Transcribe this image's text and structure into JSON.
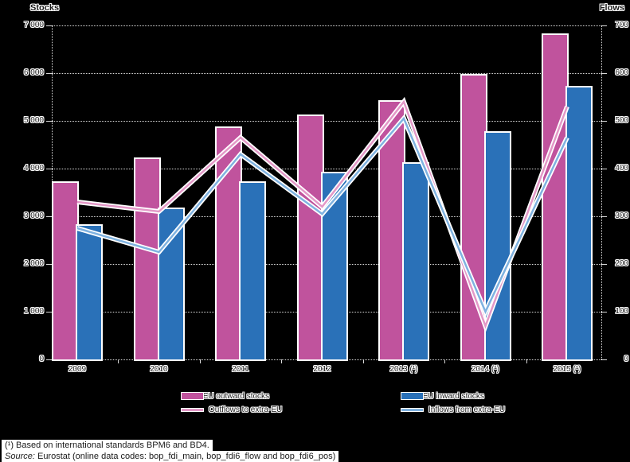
{
  "chart_data": {
    "type": "bar",
    "subtype": "dual-axis bar and line combo",
    "categories": [
      "2009",
      "2010",
      "2011",
      "2012",
      "2013 (¹)",
      "2014 (¹)",
      "2015 (¹)"
    ],
    "bar_series": [
      {
        "name": "Extra-EU outward stocks",
        "axis": "left",
        "color": "#c0539d",
        "values": [
          3700,
          4200,
          4850,
          5100,
          5400,
          5950,
          6800
        ]
      },
      {
        "name": "Extra-EU inward stocks",
        "axis": "left",
        "color": "#2a71b8",
        "values": [
          2800,
          3150,
          3700,
          3900,
          4100,
          4750,
          5700
        ]
      }
    ],
    "line_series": [
      {
        "name": "Outflows to extra-EU",
        "axis": "right",
        "color": "#e398c7",
        "values": [
          330,
          310,
          465,
          320,
          540,
          70,
          530
        ]
      },
      {
        "name": "Inflows from extra-EU",
        "axis": "right",
        "color": "#7fb2e0",
        "values": [
          275,
          225,
          430,
          305,
          505,
          100,
          465
        ]
      }
    ],
    "left_axis": {
      "title": "Stocks",
      "min": 0,
      "max": 7000,
      "tick_step": 1000,
      "tick_labels": [
        "0",
        "1 000",
        "2 000",
        "3 000",
        "4 000",
        "5 000",
        "6 000",
        "7 000"
      ]
    },
    "right_axis": {
      "title": "Flows",
      "min": 0,
      "max": 700,
      "tick_step": 100,
      "tick_labels": [
        "0",
        "100",
        "200",
        "300",
        "400",
        "500",
        "600",
        "700"
      ]
    },
    "grid": true,
    "legend_position": "bottom"
  },
  "legend": {
    "items": [
      {
        "label": "Extra-EU outward stocks",
        "swatch": "bar",
        "color": "#c0539d"
      },
      {
        "label": "Extra-EU inward stocks",
        "swatch": "bar",
        "color": "#2a71b8"
      },
      {
        "label": "Outflows to extra-EU",
        "swatch": "line",
        "color": "#e398c7"
      },
      {
        "label": "Inflows from extra-EU",
        "swatch": "line",
        "color": "#7fb2e0"
      }
    ]
  },
  "footnotes": {
    "note": "(¹) Based on international standards BPM6 and BD4.",
    "source_label": "Source:",
    "source_rest": " Eurostat (online data codes: bop_fdi_main, bop_fdi6_flow and bop_fdi6_pos)"
  },
  "colors": {
    "outward_stocks_bar": "#c0539d",
    "inward_stocks_bar": "#2a71b8",
    "outflows_line": "#e398c7",
    "inflows_line": "#7fb2e0",
    "gridline": "#d9d9d9",
    "background": "#000000",
    "footer_background": "#ffffff"
  }
}
